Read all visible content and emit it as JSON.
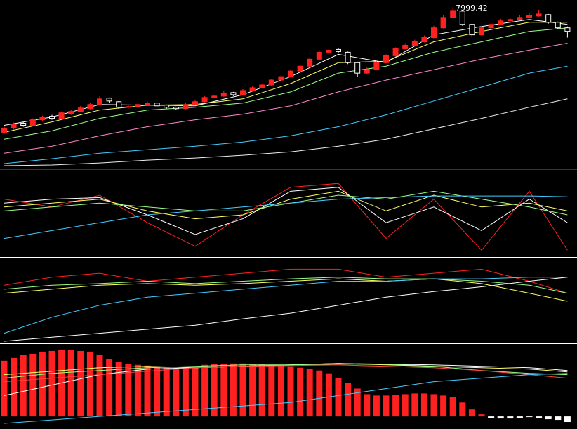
{
  "chart_data": [
    {
      "type": "candlestick",
      "high_label": "7999.42",
      "up_color": "#ff2020",
      "down_color": "#ffffff",
      "ylim": [
        5700,
        8060
      ],
      "open": [
        6200,
        6260,
        6330,
        6300,
        6380,
        6430,
        6400,
        6470,
        6500,
        6540,
        6600,
        6690,
        6640,
        6560,
        6570,
        6600,
        6620,
        6590,
        6560,
        6540,
        6600,
        6640,
        6700,
        6720,
        6770,
        6740,
        6800,
        6840,
        6880,
        6950,
        7000,
        7080,
        7150,
        7250,
        7350,
        7390,
        7350,
        7200,
        7050,
        7100,
        7200,
        7300,
        7400,
        7450,
        7500,
        7560,
        7700,
        7850,
        7940,
        7750,
        7600,
        7700,
        7750,
        7800,
        7820,
        7850,
        7870,
        7890,
        7780,
        7700
      ],
      "high": [
        6280,
        6340,
        6350,
        6400,
        6440,
        6450,
        6500,
        6520,
        6580,
        6620,
        6720,
        6700,
        6650,
        6600,
        6620,
        6640,
        6630,
        6600,
        6570,
        6620,
        6660,
        6720,
        6740,
        6790,
        6780,
        6820,
        6860,
        6900,
        6970,
        7030,
        7100,
        7180,
        7280,
        7380,
        7400,
        7410,
        7360,
        7210,
        7130,
        7220,
        7320,
        7420,
        7480,
        7530,
        7590,
        7730,
        7880,
        7999.42,
        7960,
        7760,
        7730,
        7780,
        7830,
        7850,
        7880,
        7910,
        7960,
        7900,
        7790,
        7720
      ],
      "low": [
        6180,
        6240,
        6280,
        6290,
        6360,
        6380,
        6390,
        6450,
        6490,
        6530,
        6590,
        6620,
        6540,
        6540,
        6560,
        6590,
        6570,
        6540,
        6520,
        6530,
        6590,
        6630,
        6690,
        6710,
        6720,
        6730,
        6790,
        6830,
        6870,
        6940,
        6990,
        7070,
        7140,
        7240,
        7330,
        7340,
        7180,
        7000,
        7040,
        7090,
        7190,
        7290,
        7390,
        7440,
        7490,
        7550,
        7690,
        7840,
        7730,
        7560,
        7590,
        7690,
        7740,
        7790,
        7810,
        7840,
        7860,
        7760,
        7680,
        7560
      ],
      "close": [
        6250,
        6320,
        6300,
        6380,
        6420,
        6400,
        6480,
        6500,
        6550,
        6600,
        6680,
        6650,
        6560,
        6570,
        6600,
        6620,
        6580,
        6560,
        6540,
        6600,
        6640,
        6700,
        6720,
        6760,
        6740,
        6800,
        6840,
        6880,
        6950,
        7000,
        7080,
        7150,
        7250,
        7350,
        7380,
        7360,
        7200,
        7050,
        7100,
        7200,
        7300,
        7400,
        7450,
        7500,
        7560,
        7700,
        7850,
        7950,
        7750,
        7600,
        7700,
        7750,
        7800,
        7820,
        7850,
        7880,
        7900,
        7780,
        7700,
        7650
      ],
      "line_x": [
        0,
        5,
        10,
        15,
        20,
        25,
        30,
        35,
        40,
        45,
        50,
        55,
        59
      ],
      "series": [
        {
          "color": "#ffffff",
          "values": [
            6300,
            6420,
            6600,
            6590,
            6580,
            6740,
            7000,
            7320,
            7200,
            7600,
            7720,
            7820,
            7750
          ]
        },
        {
          "color": "#ffff66",
          "values": [
            6200,
            6350,
            6520,
            6590,
            6600,
            6680,
            6900,
            7200,
            7220,
            7500,
            7650,
            7780,
            7780
          ]
        },
        {
          "color": "#99ff88",
          "values": [
            6100,
            6220,
            6400,
            6520,
            6560,
            6620,
            6780,
            7050,
            7150,
            7350,
            7500,
            7650,
            7700
          ]
        },
        {
          "color": "#ff88cc",
          "values": [
            5900,
            6000,
            6150,
            6280,
            6380,
            6460,
            6580,
            6780,
            6950,
            7100,
            7250,
            7380,
            7480
          ]
        },
        {
          "color": "#44ccff",
          "values": [
            5750,
            5820,
            5900,
            5950,
            6000,
            6060,
            6150,
            6280,
            6450,
            6650,
            6850,
            7050,
            7150
          ]
        },
        {
          "color": "#eeeeee",
          "values": [
            5720,
            5730,
            5760,
            5800,
            5830,
            5870,
            5920,
            6000,
            6100,
            6250,
            6400,
            6560,
            6680
          ]
        }
      ]
    },
    {
      "type": "line",
      "ylim": [
        0,
        100
      ],
      "line_x": [
        0,
        5,
        10,
        15,
        20,
        25,
        30,
        35,
        40,
        45,
        50,
        55,
        59
      ],
      "series": [
        {
          "color": "#ff2222",
          "values": [
            70,
            60,
            75,
            40,
            10,
            50,
            85,
            90,
            20,
            70,
            5,
            80,
            5
          ]
        },
        {
          "color": "#ffffff",
          "values": [
            65,
            70,
            72,
            50,
            25,
            45,
            80,
            85,
            40,
            60,
            30,
            70,
            40
          ]
        },
        {
          "color": "#ffff66",
          "values": [
            60,
            65,
            70,
            55,
            45,
            50,
            70,
            80,
            55,
            75,
            60,
            65,
            55
          ]
        },
        {
          "color": "#99ff88",
          "values": [
            55,
            60,
            65,
            60,
            55,
            55,
            65,
            75,
            70,
            80,
            70,
            60,
            50
          ]
        },
        {
          "color": "#44ccff",
          "values": [
            20,
            30,
            40,
            50,
            55,
            60,
            65,
            70,
            72,
            74,
            74,
            74,
            73
          ]
        }
      ]
    },
    {
      "type": "line",
      "ylim": [
        0,
        100
      ],
      "line_x": [
        0,
        5,
        10,
        15,
        20,
        25,
        30,
        35,
        40,
        45,
        50,
        55,
        59
      ],
      "series": [
        {
          "color": "#ff2222",
          "values": [
            70,
            80,
            85,
            75,
            80,
            85,
            90,
            90,
            80,
            85,
            90,
            75,
            60
          ]
        },
        {
          "color": "#ffff66",
          "values": [
            60,
            65,
            70,
            72,
            70,
            72,
            75,
            78,
            75,
            78,
            72,
            60,
            50
          ]
        },
        {
          "color": "#99ff88",
          "values": [
            65,
            70,
            72,
            75,
            72,
            75,
            78,
            80,
            78,
            78,
            75,
            70,
            60
          ]
        },
        {
          "color": "#44ccff",
          "values": [
            10,
            30,
            45,
            55,
            60,
            65,
            70,
            75,
            75,
            78,
            78,
            80,
            80
          ]
        },
        {
          "color": "#ffffff",
          "values": [
            0,
            5,
            10,
            15,
            20,
            28,
            35,
            45,
            55,
            62,
            68,
            75,
            80
          ]
        }
      ]
    },
    {
      "type": "bar",
      "ylim": [
        -12,
        100
      ],
      "up_color": "#ff2020",
      "down_color": "#ffffff",
      "values": [
        80,
        84,
        88,
        90,
        92,
        94,
        95,
        95,
        94,
        93,
        88,
        82,
        78,
        75,
        74,
        73,
        72,
        70,
        68,
        70,
        72,
        74,
        75,
        75,
        76,
        76,
        75,
        75,
        74,
        73,
        72,
        70,
        68,
        66,
        62,
        55,
        48,
        40,
        32,
        30,
        30,
        31,
        32,
        33,
        33,
        32,
        30,
        28,
        20,
        10,
        3,
        -2,
        -3,
        -3,
        -2,
        -1,
        -2,
        -4,
        -5,
        -8
      ],
      "line_x": [
        0,
        5,
        10,
        15,
        20,
        25,
        30,
        35,
        40,
        45,
        50,
        55,
        59
      ],
      "series": [
        {
          "color": "#ffffff",
          "values": [
            30,
            45,
            60,
            68,
            70,
            72,
            74,
            76,
            75,
            74,
            72,
            70,
            66
          ]
        },
        {
          "color": "#ffff66",
          "values": [
            60,
            65,
            70,
            72,
            70,
            72,
            74,
            76,
            74,
            72,
            70,
            68,
            64
          ]
        },
        {
          "color": "#99ff88",
          "values": [
            55,
            62,
            66,
            70,
            72,
            74,
            74,
            75,
            75,
            72,
            66,
            62,
            60
          ]
        },
        {
          "color": "#ff4444",
          "values": [
            50,
            55,
            60,
            65,
            70,
            72,
            73,
            74,
            72,
            70,
            66,
            60,
            55
          ]
        },
        {
          "color": "#44ccff",
          "values": [
            -10,
            -5,
            0,
            5,
            10,
            15,
            20,
            30,
            40,
            50,
            55,
            60,
            62
          ]
        }
      ]
    }
  ]
}
